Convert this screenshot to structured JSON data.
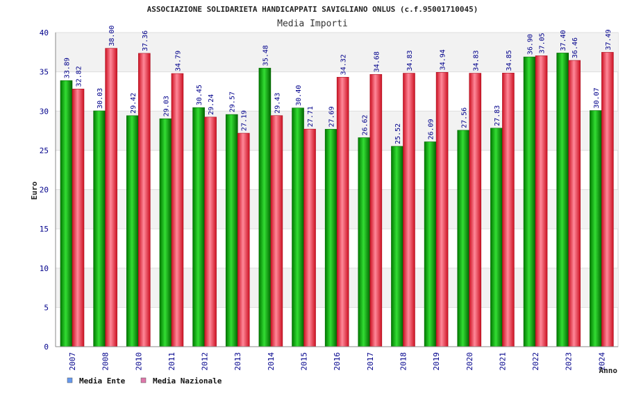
{
  "chart_data": {
    "type": "bar",
    "title": "ASSOCIAZIONE SOLIDARIETA HANDICAPPATI SAVIGLIANO ONLUS (c.f.95001710045)",
    "subtitle": "Media Importi",
    "xlabel": "Anno",
    "ylabel": "Euro",
    "ylim": [
      0,
      40
    ],
    "yticks": [
      "0",
      "5",
      "10",
      "15",
      "20",
      "25",
      "30",
      "35",
      "40"
    ],
    "grid": true,
    "legend_position": "bottom-left",
    "categories": [
      "2007",
      "2008",
      "2010",
      "2011",
      "2012",
      "2013",
      "2014",
      "2015",
      "2016",
      "2017",
      "2018",
      "2019",
      "2020",
      "2021",
      "2022",
      "2023",
      "2024"
    ],
    "series": [
      {
        "name": "Media Ente",
        "color": "#00aa00",
        "legend_color": "#6699ee",
        "values": [
          33.89,
          30.03,
          29.42,
          29.03,
          30.45,
          29.57,
          35.48,
          30.4,
          27.69,
          26.62,
          25.52,
          26.09,
          27.56,
          27.83,
          36.9,
          37.4,
          30.07
        ],
        "labels": [
          "33.89",
          "30.03",
          "29.42",
          "29.03",
          "30.45",
          "29.57",
          "35.48",
          "30.40",
          "27.69",
          "26.62",
          "25.52",
          "26.09",
          "27.56",
          "27.83",
          "36.90",
          "37.40",
          "30.07"
        ]
      },
      {
        "name": "Media Nazionale",
        "color": "#ee2233",
        "legend_color": "#dd77aa",
        "values": [
          32.82,
          38.0,
          37.36,
          34.79,
          29.24,
          27.19,
          29.43,
          27.71,
          34.32,
          34.68,
          34.83,
          34.94,
          34.83,
          34.85,
          37.05,
          36.46,
          37.49
        ],
        "labels": [
          "32.82",
          "38.00",
          "37.36",
          "34.79",
          "29.24",
          "27.19",
          "29.43",
          "27.71",
          "34.32",
          "34.68",
          "34.83",
          "34.94",
          "34.83",
          "34.85",
          "37.05",
          "36.46",
          "37.49"
        ]
      }
    ]
  }
}
